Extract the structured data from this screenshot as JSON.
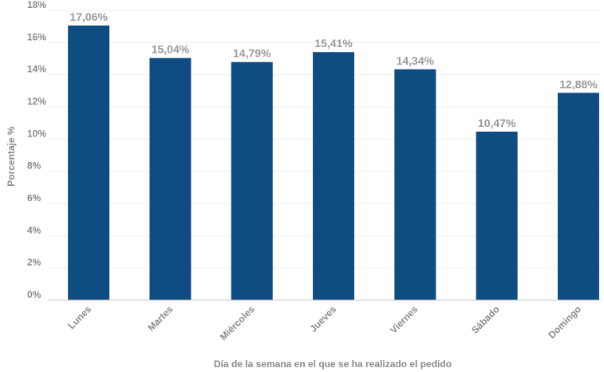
{
  "chart_data": {
    "type": "bar",
    "categories": [
      "Lunes",
      "Martes",
      "Miércoles",
      "Jueves",
      "Viernes",
      "Sábado",
      "Domingo"
    ],
    "values": [
      17.06,
      15.04,
      14.79,
      15.41,
      14.34,
      10.47,
      12.88
    ],
    "value_labels": [
      "17,06%",
      "15,04%",
      "14,79%",
      "15,41%",
      "14,34%",
      "10,47%",
      "12,88%"
    ],
    "title": "",
    "xlabel": "Día de la semana en el que se ha realizado el pedido",
    "ylabel": "Porcentaje %",
    "ylim": [
      0,
      18
    ],
    "yticks": [
      0,
      2,
      4,
      6,
      8,
      10,
      12,
      14,
      16,
      18
    ],
    "ytick_labels": [
      "0%",
      "2%",
      "4%",
      "6%",
      "8%",
      "10%",
      "12%",
      "14%",
      "16%",
      "18%"
    ],
    "grid": true,
    "legend": "none",
    "colors": {
      "bar": "#0f4c81",
      "data_label": "#9a9a9a",
      "axis_text": "#8a8a8a",
      "grid": "#eeeeee"
    }
  }
}
